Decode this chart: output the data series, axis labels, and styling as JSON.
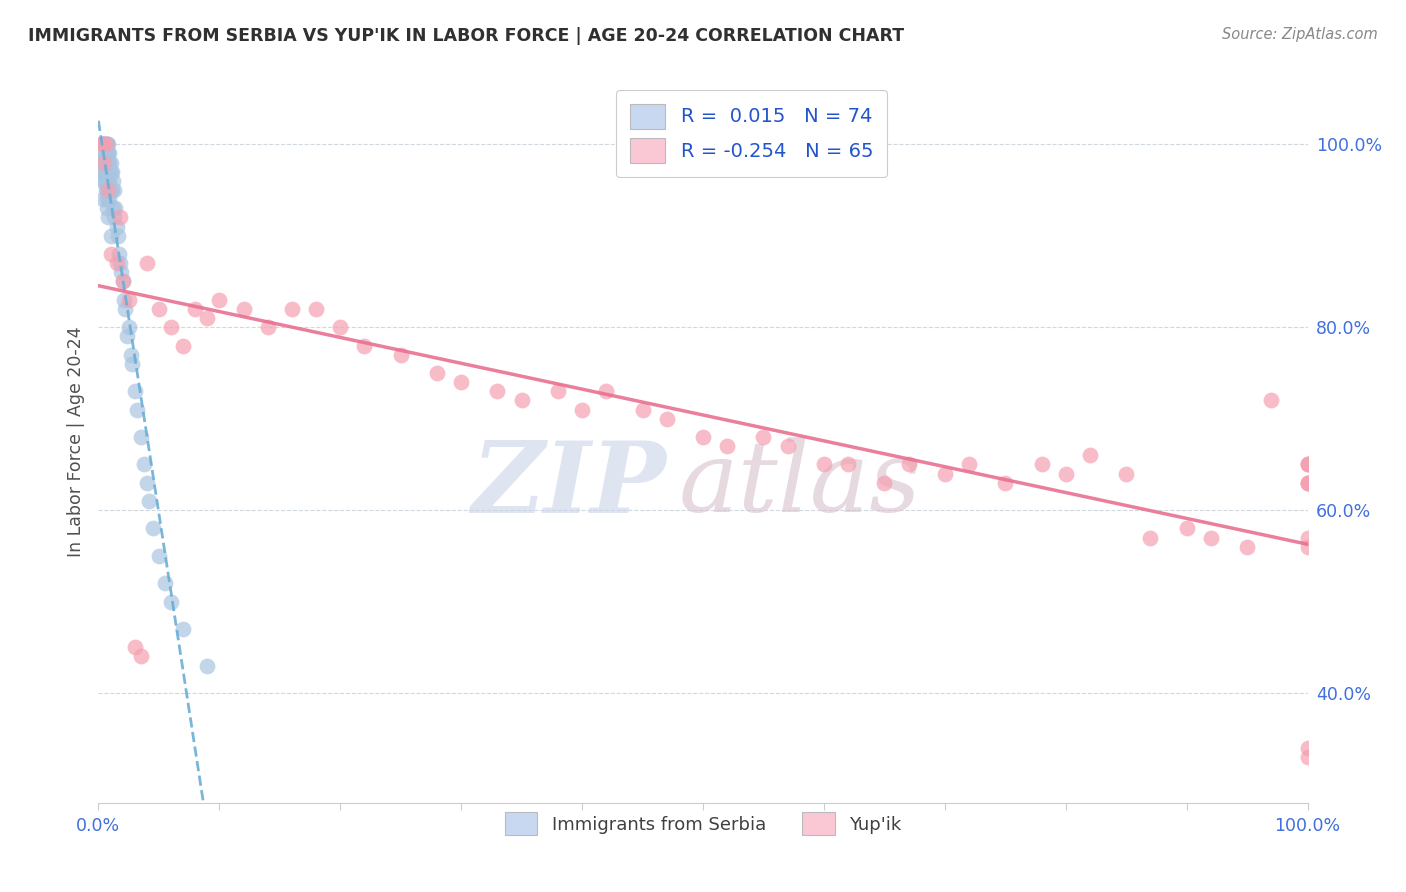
{
  "title": "IMMIGRANTS FROM SERBIA VS YUP'IK IN LABOR FORCE | AGE 20-24 CORRELATION CHART",
  "source": "Source: ZipAtlas.com",
  "ylabel": "In Labor Force | Age 20-24",
  "x_min": 0.0,
  "x_max": 1.0,
  "y_min": 0.28,
  "y_max": 1.07,
  "serbia_R": 0.015,
  "serbia_N": 74,
  "yupik_R": -0.254,
  "yupik_N": 65,
  "serbia_color": "#a8c4e0",
  "yupik_color": "#f4a0b0",
  "serbia_line_color": "#6aaed6",
  "yupik_line_color": "#e87090",
  "serbia_legend_color": "#c8d8f0",
  "yupik_legend_color": "#fac8d4",
  "watermark_zip": "ZIP",
  "watermark_atlas": "atlas",
  "watermark_color_zip": "#c8d4e8",
  "watermark_color_atlas": "#d8c8d8",
  "title_color": "#303030",
  "axis_label_color": "#505050",
  "tick_color_right": "#4070dd",
  "tick_color_bottom": "#4070dd",
  "grid_color": "#d0d8e0",
  "background_color": "#ffffff",
  "serbia_x": [
    0.002,
    0.003,
    0.003,
    0.004,
    0.004,
    0.004,
    0.004,
    0.004,
    0.005,
    0.005,
    0.005,
    0.005,
    0.005,
    0.005,
    0.006,
    0.006,
    0.006,
    0.006,
    0.006,
    0.007,
    0.007,
    0.007,
    0.007,
    0.007,
    0.007,
    0.007,
    0.007,
    0.007,
    0.008,
    0.008,
    0.008,
    0.008,
    0.008,
    0.008,
    0.009,
    0.009,
    0.009,
    0.009,
    0.009,
    0.01,
    0.01,
    0.01,
    0.01,
    0.011,
    0.011,
    0.012,
    0.012,
    0.013,
    0.013,
    0.014,
    0.015,
    0.016,
    0.017,
    0.018,
    0.019,
    0.02,
    0.021,
    0.022,
    0.024,
    0.025,
    0.027,
    0.028,
    0.03,
    0.032,
    0.035,
    0.038,
    0.04,
    0.042,
    0.045,
    0.05,
    0.055,
    0.06,
    0.07,
    0.09
  ],
  "serbia_y": [
    1.0,
    1.0,
    0.98,
    1.0,
    0.99,
    0.97,
    0.96,
    0.94,
    1.0,
    1.0,
    0.99,
    0.98,
    0.97,
    0.96,
    1.0,
    0.99,
    0.98,
    0.97,
    0.95,
    1.0,
    1.0,
    0.99,
    0.98,
    0.97,
    0.96,
    0.95,
    0.94,
    0.93,
    1.0,
    0.99,
    0.98,
    0.97,
    0.96,
    0.92,
    0.99,
    0.98,
    0.97,
    0.96,
    0.94,
    0.98,
    0.97,
    0.95,
    0.9,
    0.97,
    0.95,
    0.96,
    0.93,
    0.95,
    0.92,
    0.93,
    0.91,
    0.9,
    0.88,
    0.87,
    0.86,
    0.85,
    0.83,
    0.82,
    0.79,
    0.8,
    0.77,
    0.76,
    0.73,
    0.71,
    0.68,
    0.65,
    0.63,
    0.61,
    0.58,
    0.55,
    0.52,
    0.5,
    0.47,
    0.43
  ],
  "yupik_x": [
    0.003,
    0.004,
    0.005,
    0.006,
    0.008,
    0.01,
    0.015,
    0.018,
    0.02,
    0.025,
    0.03,
    0.035,
    0.04,
    0.05,
    0.06,
    0.07,
    0.08,
    0.09,
    0.1,
    0.12,
    0.14,
    0.16,
    0.18,
    0.2,
    0.22,
    0.25,
    0.28,
    0.3,
    0.33,
    0.35,
    0.38,
    0.4,
    0.42,
    0.45,
    0.47,
    0.5,
    0.52,
    0.55,
    0.57,
    0.6,
    0.62,
    0.65,
    0.67,
    0.7,
    0.72,
    0.75,
    0.78,
    0.8,
    0.82,
    0.85,
    0.87,
    0.9,
    0.92,
    0.95,
    0.97,
    1.0,
    1.0,
    1.0,
    1.0,
    1.0,
    1.0,
    1.0,
    1.0,
    1.0,
    1.0
  ],
  "yupik_y": [
    1.0,
    1.0,
    0.98,
    1.0,
    0.95,
    0.88,
    0.87,
    0.92,
    0.85,
    0.83,
    0.45,
    0.44,
    0.87,
    0.82,
    0.8,
    0.78,
    0.82,
    0.81,
    0.83,
    0.82,
    0.8,
    0.82,
    0.82,
    0.8,
    0.78,
    0.77,
    0.75,
    0.74,
    0.73,
    0.72,
    0.73,
    0.71,
    0.73,
    0.71,
    0.7,
    0.68,
    0.67,
    0.68,
    0.67,
    0.65,
    0.65,
    0.63,
    0.65,
    0.64,
    0.65,
    0.63,
    0.65,
    0.64,
    0.66,
    0.64,
    0.57,
    0.58,
    0.57,
    0.56,
    0.72,
    0.65,
    0.63,
    0.63,
    0.65,
    0.63,
    0.57,
    0.56,
    0.65,
    0.34,
    0.33
  ]
}
